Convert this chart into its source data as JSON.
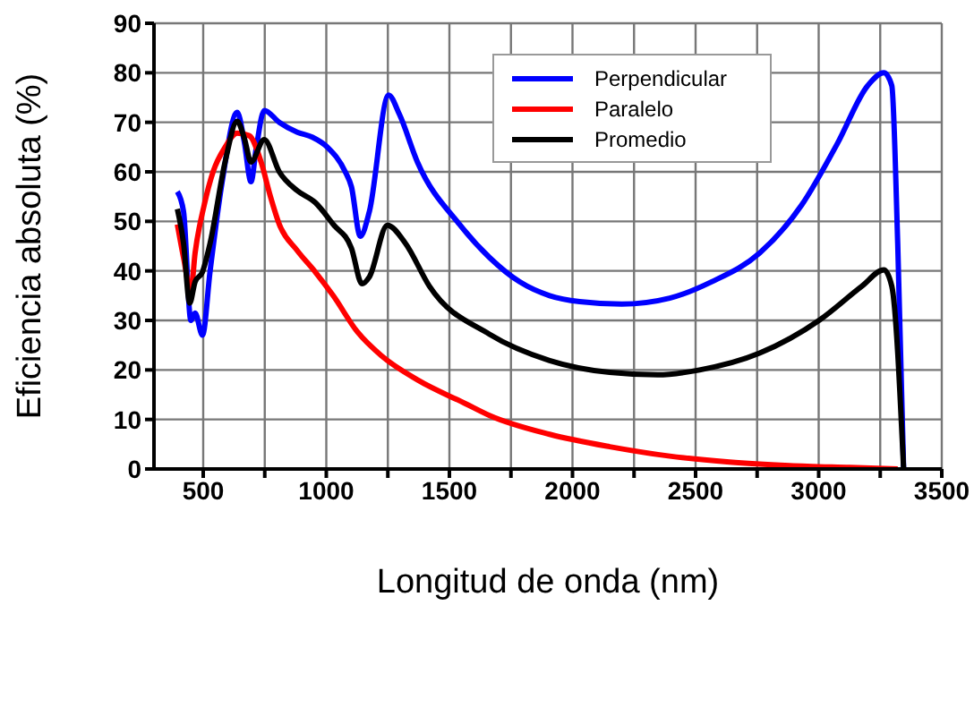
{
  "chart_data": {
    "type": "line",
    "xlabel": "Longitud de onda (nm)",
    "ylabel": "Eficiencia absoluta (%)",
    "xlim": [
      300,
      3500
    ],
    "ylim": [
      0,
      90
    ],
    "xticks": [
      500,
      {
        "value": 750,
        "label": null
      },
      1000,
      {
        "value": 1250,
        "label": null
      },
      1500,
      {
        "value": 1750,
        "label": null
      },
      2000,
      {
        "value": 2250,
        "label": null
      },
      2500,
      {
        "value": 2750,
        "label": null
      },
      3000,
      {
        "value": 3250,
        "label": null
      },
      3500
    ],
    "yticks": [
      0,
      10,
      20,
      30,
      40,
      50,
      60,
      70,
      80,
      90
    ],
    "grid": true,
    "legend": "top right",
    "marker": "none",
    "line_style": "solid",
    "series": [
      {
        "name": "Perpendicular",
        "color": "#0000ff",
        "x": [
          395,
          420,
          450,
          467,
          497,
          528,
          577,
          638,
          667,
          694,
          716,
          748,
          809,
          882,
          943,
          1004,
          1077,
          1102,
          1138,
          1175,
          1253,
          1297,
          1370,
          1541,
          1663,
          1785,
          1907,
          2029,
          2200,
          2395,
          2565,
          2760,
          2931,
          3077,
          3199,
          3265,
          3297,
          3321,
          3345
        ],
        "values": [
          56,
          52,
          30,
          31.5,
          27,
          40,
          58,
          72,
          66,
          58,
          65,
          72.4,
          70,
          68,
          67,
          65,
          60,
          57,
          47,
          52,
          75.5,
          71.6,
          62,
          49.4,
          42.7,
          37.8,
          35,
          33.8,
          33.3,
          34.5,
          37.8,
          43.6,
          53.3,
          65.8,
          77.4,
          80,
          77.4,
          45.6,
          0
        ]
      },
      {
        "name": "Paralelo",
        "color": "#ff0000",
        "x": [
          395,
          420,
          450,
          467,
          504,
          540,
          589,
          638,
          687,
          735,
          772,
          809,
          882,
          955,
          1028,
          1126,
          1223,
          1370,
          1565,
          1663,
          1907,
          2151,
          2395,
          2638,
          2882,
          3126,
          3321
        ],
        "values": [
          49.4,
          42.7,
          36,
          43.6,
          53.3,
          60,
          65,
          67.8,
          67.3,
          62,
          55.2,
          49.4,
          44.1,
          39.8,
          35,
          27.7,
          22.9,
          18,
          13.2,
          10.8,
          7,
          4.5,
          2.6,
          1.4,
          0.7,
          0.3,
          0
        ]
      },
      {
        "name": "Promedio",
        "color": "#000000",
        "x": [
          395,
          420,
          445,
          467,
          497,
          528,
          589,
          638,
          667,
          694,
          748,
          809,
          882,
          955,
          1028,
          1102,
          1145,
          1175,
          1248,
          1321,
          1419,
          1663,
          1907,
          2151,
          2346,
          2516,
          2760,
          3004,
          3175,
          3265,
          3297,
          3345
        ],
        "values": [
          52.5,
          45.6,
          33.5,
          37.8,
          39.8,
          45.6,
          62,
          70.2,
          66.8,
          62,
          66.5,
          60,
          56.2,
          53.8,
          49.4,
          44.6,
          37.4,
          38.8,
          49.2,
          45.6,
          36.9,
          27.2,
          21.9,
          19.5,
          19,
          20,
          23.4,
          30.1,
          36.9,
          40.2,
          36.9,
          0
        ]
      }
    ]
  }
}
